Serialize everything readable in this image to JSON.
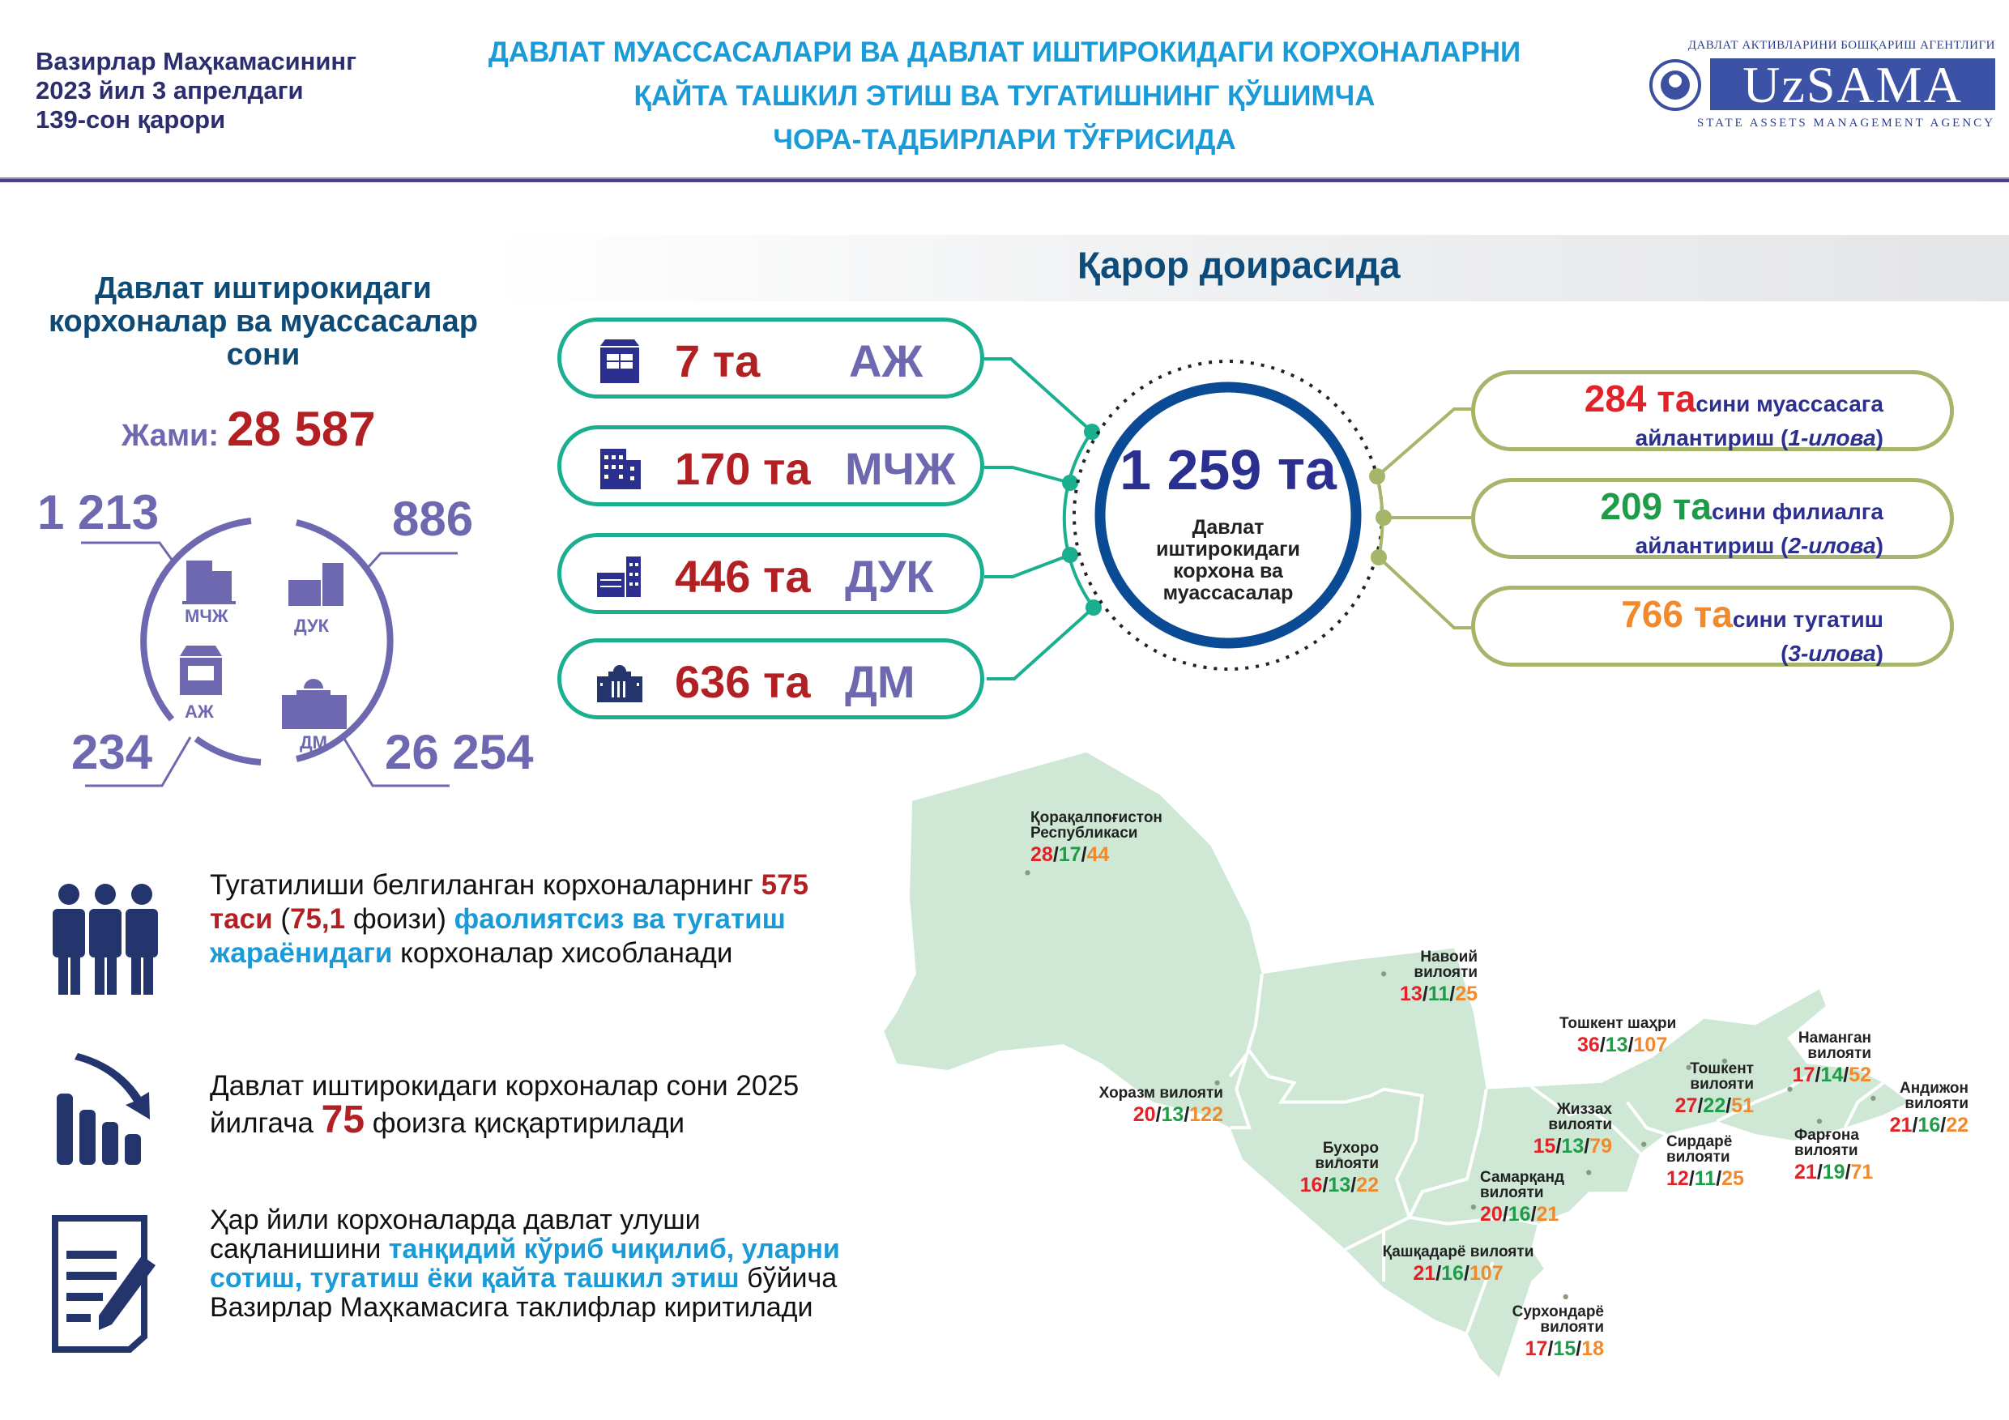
{
  "header": {
    "decree_lines": [
      "Вазирлар Маҳкамасининг",
      "2023 йил 3 апрелдаги",
      "139-сон қарори"
    ],
    "title_lines": [
      "ДАВЛАТ МУАССАСАЛАРИ ВА ДАВЛАТ ИШТИРОКИДАГИ КОРХОНАЛАРНИ",
      "ҚАЙТА ТАШКИЛ ЭТИШ ВА ТУГАТИШНИНГ ҚЎШИМЧА",
      "ЧОРА-ТАДБИРЛАРИ ТЎҒРИСИДА"
    ],
    "logo": {
      "top_text": "ДАВЛАТ АКТИВЛАРИНИ БОШҚАРИШ АГЕНТЛИГИ",
      "name": "UzSAMA",
      "bottom_text": "STATE ASSETS MANAGEMENT AGENCY"
    }
  },
  "left": {
    "heading_lines": [
      "Давлат иштирокидаги",
      "корхоналар ва муассасалар",
      "сони"
    ],
    "total_label": "Жами:",
    "total_value": "28 587",
    "breakdown": [
      {
        "abbr": "МЧЖ",
        "value": "1 213"
      },
      {
        "abbr": "ДУК",
        "value": "886"
      },
      {
        "abbr": "АЖ",
        "value": "234"
      },
      {
        "abbr": "ДМ",
        "value": "26 254"
      }
    ]
  },
  "decision": {
    "banner_title": "Қарор доирасида",
    "types": [
      {
        "count": "7 та",
        "abbr": "АЖ"
      },
      {
        "count": "170 та",
        "abbr": "МЧЖ"
      },
      {
        "count": "446 та",
        "abbr": "ДУК"
      },
      {
        "count": "636 та",
        "abbr": "ДМ"
      }
    ],
    "center_total": "1 259 та",
    "center_caption": "Давлат иштирокидаги корхона ва муассасалар",
    "outcomes": [
      {
        "number": "284 та",
        "rest": "сини  муассасага",
        "line2": "айлантириш (",
        "annex": "1-илова",
        "close": ")",
        "color": "#e32228"
      },
      {
        "number": "209 та",
        "rest": "сини филиалга",
        "line2": "айлантириш (",
        "annex": "2-илова",
        "close": ")",
        "color": "#1e9c48"
      },
      {
        "number": "766 та",
        "rest": "сини тугатиш",
        "line2": "(",
        "annex": "3-илова",
        "close": ")",
        "color": "#f08a2c"
      }
    ]
  },
  "notes": [
    {
      "icon": "people-icon",
      "segments": [
        {
          "t": "Тугатилиши белгиланган корхоналарнинг ",
          "s": ""
        },
        {
          "t": "575 таси",
          "s": "red"
        },
        {
          "t": " (",
          "s": ""
        },
        {
          "t": "75,1",
          "s": "red"
        },
        {
          "t": " фоизи) ",
          "s": ""
        },
        {
          "t": "фаолиятсиз ва тугатиш жараёнидаги",
          "s": "blue"
        },
        {
          "t": " корхоналар хисобланади",
          "s": ""
        }
      ]
    },
    {
      "icon": "declining-chart-icon",
      "segments": [
        {
          "t": "Давлат иштирокидаги корхоналар сони 2025 йилгача ",
          "s": ""
        },
        {
          "t": "75",
          "s": "red big"
        },
        {
          "t": " фоизга қисқартирилади",
          "s": ""
        }
      ]
    },
    {
      "icon": "document-pen-icon",
      "segments": [
        {
          "t": "Ҳар йили корхоналарда давлат улуши сақланишини ",
          "s": ""
        },
        {
          "t": "танқидий кўриб чиқилиб, уларни сотиш, тугатиш ёки қайта ташкил этиш",
          "s": "blue"
        },
        {
          "t": " бўйича Вазирлар Маҳкамасига таклифлар киритилади",
          "s": ""
        }
      ]
    }
  ],
  "map": {
    "legend_colors": {
      "first": "#e32228",
      "second": "#1e9c48",
      "third": "#f08a2c"
    },
    "regions": [
      {
        "name": "Қорақалпоғистон Республикаси",
        "values": [
          "28",
          "17",
          "44"
        ]
      },
      {
        "name": "Навоий вилояти",
        "values": [
          "13",
          "11",
          "25"
        ]
      },
      {
        "name": "Тошкент шаҳри",
        "values": [
          "36",
          "13",
          "107"
        ]
      },
      {
        "name": "Наманган вилояти",
        "values": [
          "17",
          "14",
          "52"
        ]
      },
      {
        "name": "Тошкент вилояти",
        "values": [
          "27",
          "22",
          "51"
        ]
      },
      {
        "name": "Андижон вилояти",
        "values": [
          "21",
          "16",
          "22"
        ]
      },
      {
        "name": "Хоразм вилояти",
        "values": [
          "20",
          "13",
          "122"
        ]
      },
      {
        "name": "Жиззах вилояти",
        "values": [
          "15",
          "13",
          "79"
        ]
      },
      {
        "name": "Фарғона вилояти",
        "values": [
          "21",
          "19",
          "71"
        ]
      },
      {
        "name": "Бухоро вилояти",
        "values": [
          "16",
          "13",
          "22"
        ]
      },
      {
        "name": "Сирдарё вилояти",
        "values": [
          "12",
          "11",
          "25"
        ]
      },
      {
        "name": "Самарқанд вилояти",
        "values": [
          "20",
          "16",
          "21"
        ]
      },
      {
        "name": "Қашқадарё вилояти",
        "values": [
          "21",
          "16",
          "107"
        ]
      },
      {
        "name": "Сурхондарё вилояти",
        "values": [
          "17",
          "15",
          "18"
        ]
      }
    ]
  }
}
